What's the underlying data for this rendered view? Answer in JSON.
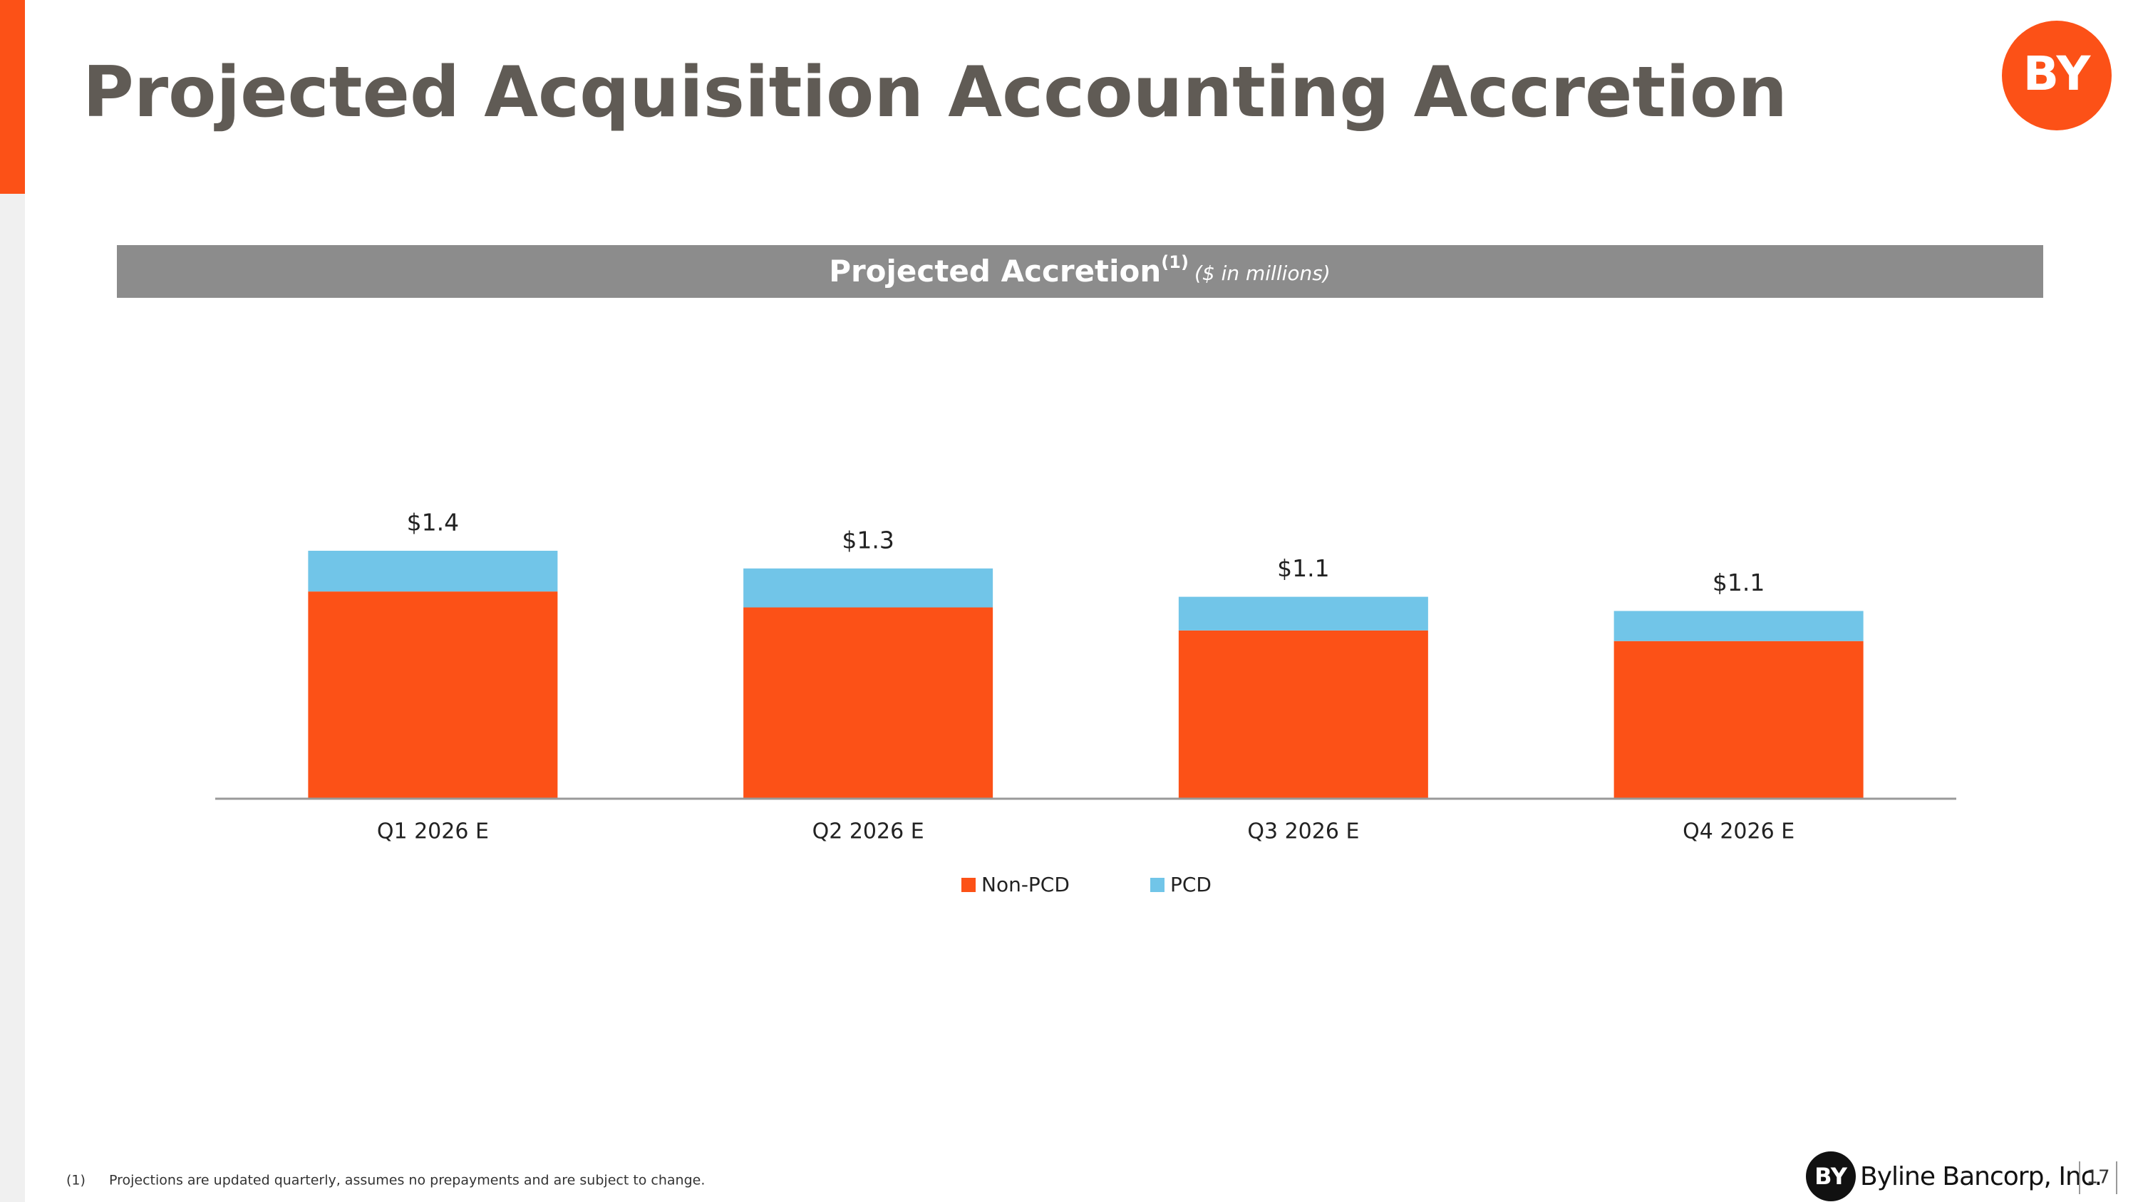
{
  "header": {
    "title": "Projected Acquisition Accounting Accretion",
    "logo_text": "BY"
  },
  "chart_header": {
    "title": "Projected Accretion",
    "superscript": "(1)",
    "subtitle": "($ in millions)"
  },
  "chart_data": {
    "type": "stacked_bar",
    "categories": [
      "Q1 2026 E",
      "Q2 2026 E",
      "Q3 2026 E",
      "Q4 2026 E"
    ],
    "series": [
      {
        "name": "Non-PCD",
        "color": "#fc5117",
        "values": [
          1.17,
          1.08,
          0.95,
          0.89
        ]
      },
      {
        "name": "PCD",
        "color": "#71c5e8",
        "values": [
          0.23,
          0.22,
          0.19,
          0.17
        ]
      }
    ],
    "total_labels": [
      "$1.4",
      "$1.3",
      "$1.1",
      "$1.1"
    ],
    "legend": "bottom"
  },
  "footnote": {
    "marker": "(1)",
    "text": "Projections are updated quarterly, assumes no prepayments and are subject to change."
  },
  "footer": {
    "company": "Byline Bancorp, Inc.",
    "logo_text": "BY",
    "page_number": "17"
  }
}
